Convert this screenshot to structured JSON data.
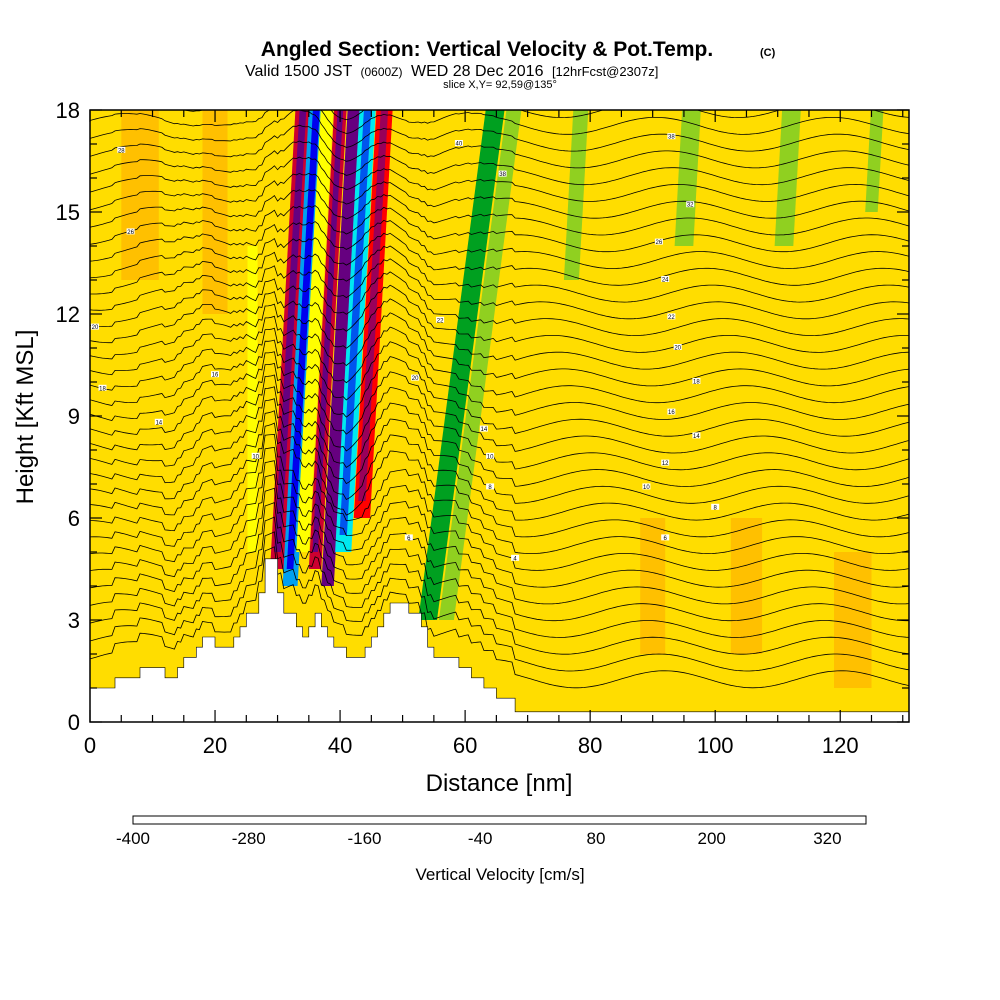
{
  "chart_data": {
    "type": "heatmap",
    "title": "Angled Section: Vertical Velocity & Pot.Temp.",
    "title_mark": "(C)",
    "subtitle_line1": {
      "prefix": "Valid 1500 JST",
      "utc": "(0600Z)",
      "date": "WED 28 Dec 2016",
      "forecast": "[12hrFcst@2307z]"
    },
    "subtitle_line2": "slice X,Y= 92,59@135°",
    "xlabel": "Distance [nm]",
    "ylabel": "Height [Kft MSL]",
    "xlim": [
      0,
      131
    ],
    "ylim": [
      0,
      18
    ],
    "x_ticks": [
      "0",
      "20",
      "40",
      "60",
      "80",
      "100",
      "120"
    ],
    "x_tick_values": [
      0,
      20,
      40,
      60,
      80,
      100,
      120
    ],
    "y_ticks": [
      "0",
      "3",
      "6",
      "9",
      "12",
      "15",
      "18"
    ],
    "y_tick_values": [
      0,
      3,
      6,
      9,
      12,
      15,
      18
    ],
    "colorbar": {
      "label": "Vertical Velocity [cm/s]",
      "min": -400,
      "max": 360,
      "step": 40,
      "tick_labels": [
        "-400",
        "-280",
        "-160",
        "-40",
        "80",
        "200",
        "320"
      ],
      "tick_values": [
        -400,
        -280,
        -160,
        -40,
        80,
        200,
        320
      ],
      "colors": [
        "#0000ee",
        "#0055ee",
        "#00a0f0",
        "#00e8f0",
        "#00d890",
        "#00c050",
        "#00a020",
        "#40b020",
        "#90d020",
        "#ffff00",
        "#ffdd00",
        "#ffc000",
        "#ffa000",
        "#ff7000",
        "#ff3000",
        "#ff0000",
        "#cc0030",
        "#99005a",
        "#660080"
      ]
    },
    "terrain_kft": [
      [
        0,
        1.0
      ],
      [
        4,
        1.0
      ],
      [
        4,
        1.3
      ],
      [
        8,
        1.3
      ],
      [
        8,
        1.6
      ],
      [
        12,
        1.6
      ],
      [
        12,
        1.3
      ],
      [
        14,
        1.3
      ],
      [
        14,
        1.6
      ],
      [
        15,
        1.6
      ],
      [
        15,
        1.9
      ],
      [
        17,
        1.9
      ],
      [
        17,
        2.2
      ],
      [
        18,
        2.2
      ],
      [
        18,
        2.5
      ],
      [
        20,
        2.5
      ],
      [
        20,
        2.2
      ],
      [
        23,
        2.2
      ],
      [
        23,
        2.5
      ],
      [
        24,
        2.5
      ],
      [
        24,
        2.8
      ],
      [
        25,
        2.8
      ],
      [
        25,
        3.2
      ],
      [
        27,
        3.2
      ],
      [
        27,
        3.8
      ],
      [
        28,
        3.8
      ],
      [
        28,
        4.8
      ],
      [
        30,
        4.8
      ],
      [
        30,
        3.8
      ],
      [
        31,
        3.8
      ],
      [
        31,
        3.2
      ],
      [
        33,
        3.2
      ],
      [
        33,
        2.8
      ],
      [
        34,
        2.8
      ],
      [
        34,
        2.5
      ],
      [
        35,
        2.5
      ],
      [
        35,
        2.8
      ],
      [
        36,
        2.8
      ],
      [
        36,
        3.2
      ],
      [
        37,
        3.2
      ],
      [
        37,
        2.8
      ],
      [
        38,
        2.8
      ],
      [
        38,
        2.5
      ],
      [
        39,
        2.5
      ],
      [
        39,
        2.2
      ],
      [
        41,
        2.2
      ],
      [
        41,
        1.9
      ],
      [
        44,
        1.9
      ],
      [
        44,
        2.2
      ],
      [
        45,
        2.2
      ],
      [
        45,
        2.5
      ],
      [
        46,
        2.5
      ],
      [
        46,
        2.8
      ],
      [
        47,
        2.8
      ],
      [
        47,
        3.2
      ],
      [
        48,
        3.2
      ],
      [
        48,
        3.5
      ],
      [
        51,
        3.5
      ],
      [
        51,
        3.2
      ],
      [
        53,
        3.2
      ],
      [
        53,
        2.8
      ],
      [
        54,
        2.8
      ],
      [
        54,
        2.2
      ],
      [
        55,
        2.2
      ],
      [
        55,
        1.9
      ],
      [
        59,
        1.9
      ],
      [
        59,
        1.6
      ],
      [
        61,
        1.6
      ],
      [
        61,
        1.3
      ],
      [
        63,
        1.3
      ],
      [
        63,
        1.0
      ],
      [
        65,
        1.0
      ],
      [
        65,
        0.7
      ],
      [
        68,
        0.7
      ],
      [
        68,
        0.3
      ],
      [
        131,
        0.3
      ]
    ],
    "velocity_features": [
      {
        "x": 30,
        "z": [
          4.5,
          18
        ],
        "width": 1.2,
        "tilt": 0.05,
        "value": 240
      },
      {
        "x": 32,
        "z": [
          4.0,
          18
        ],
        "width": 1.2,
        "tilt": 0.05,
        "value": -300
      },
      {
        "x": 34,
        "z": [
          5.0,
          18
        ],
        "width": 1.0,
        "tilt": 0.05,
        "value": -40
      },
      {
        "x": 36,
        "z": [
          4.5,
          18
        ],
        "width": 1.0,
        "tilt": 0.05,
        "value": 240
      },
      {
        "x": 38,
        "z": [
          4.0,
          18
        ],
        "width": 1.0,
        "tilt": 0.05,
        "value": 340
      },
      {
        "x": 40.5,
        "z": [
          5.0,
          18
        ],
        "width": 1.3,
        "tilt": 0.05,
        "value": -260
      },
      {
        "x": 43.5,
        "z": [
          6.0,
          18
        ],
        "width": 1.3,
        "tilt": 0.05,
        "value": 220
      },
      {
        "x": 54,
        "z": [
          3.0,
          18
        ],
        "width": 1.5,
        "tilt": 0.12,
        "value": -140
      },
      {
        "x": 57,
        "z": [
          3.0,
          18
        ],
        "width": 1.2,
        "tilt": 0.12,
        "value": -60
      },
      {
        "x": 26,
        "z": [
          5.0,
          14
        ],
        "width": 0.8,
        "tilt": 0.0,
        "value": -40
      },
      {
        "x": 77,
        "z": [
          13,
          18
        ],
        "width": 1.2,
        "tilt": 0.05,
        "value": -60
      },
      {
        "x": 95,
        "z": [
          14,
          18
        ],
        "width": 1.5,
        "tilt": 0.05,
        "value": -60
      },
      {
        "x": 111,
        "z": [
          14,
          18
        ],
        "width": 1.5,
        "tilt": 0.05,
        "value": -60
      },
      {
        "x": 125,
        "z": [
          15,
          18
        ],
        "width": 1.0,
        "tilt": 0.05,
        "value": -60
      },
      {
        "x": 8,
        "z": [
          13,
          18
        ],
        "width": 3.0,
        "tilt": 0.0,
        "value": 40
      },
      {
        "x": 20,
        "z": [
          12,
          18
        ],
        "width": 2.0,
        "tilt": 0.0,
        "value": 40
      },
      {
        "x": 90,
        "z": [
          2,
          6
        ],
        "width": 2.0,
        "tilt": 0.0,
        "value": 40
      },
      {
        "x": 105,
        "z": [
          2,
          6
        ],
        "width": 2.5,
        "tilt": 0.0,
        "value": 40
      },
      {
        "x": 122,
        "z": [
          1,
          5
        ],
        "width": 3.0,
        "tilt": 0.0,
        "value": 40
      }
    ],
    "isentrope_labels": [
      {
        "x": 5,
        "z": 16.8,
        "text": "28"
      },
      {
        "x": 6.5,
        "z": 14.4,
        "text": "26"
      },
      {
        "x": 0.8,
        "z": 11.6,
        "text": "20"
      },
      {
        "x": 2,
        "z": 9.8,
        "text": "18"
      },
      {
        "x": 11,
        "z": 8.8,
        "text": "14"
      },
      {
        "x": 20,
        "z": 10.2,
        "text": "16"
      },
      {
        "x": 26.5,
        "z": 7.8,
        "text": "10"
      },
      {
        "x": 59,
        "z": 17.0,
        "text": "40"
      },
      {
        "x": 66,
        "z": 16.1,
        "text": "38"
      },
      {
        "x": 56,
        "z": 11.8,
        "text": "22"
      },
      {
        "x": 52,
        "z": 10.1,
        "text": "20"
      },
      {
        "x": 63,
        "z": 8.6,
        "text": "14"
      },
      {
        "x": 64,
        "z": 7.8,
        "text": "10"
      },
      {
        "x": 64,
        "z": 6.9,
        "text": "8"
      },
      {
        "x": 51,
        "z": 5.4,
        "text": "6"
      },
      {
        "x": 68,
        "z": 4.8,
        "text": "4"
      },
      {
        "x": 93,
        "z": 17.2,
        "text": "38"
      },
      {
        "x": 96,
        "z": 15.2,
        "text": "32"
      },
      {
        "x": 91,
        "z": 14.1,
        "text": "26"
      },
      {
        "x": 92,
        "z": 13.0,
        "text": "24"
      },
      {
        "x": 93,
        "z": 11.9,
        "text": "22"
      },
      {
        "x": 94,
        "z": 11.0,
        "text": "20"
      },
      {
        "x": 97,
        "z": 10.0,
        "text": "18"
      },
      {
        "x": 93,
        "z": 9.1,
        "text": "16"
      },
      {
        "x": 97,
        "z": 8.4,
        "text": "14"
      },
      {
        "x": 92,
        "z": 7.6,
        "text": "12"
      },
      {
        "x": 89,
        "z": 6.9,
        "text": "10"
      },
      {
        "x": 100,
        "z": 6.3,
        "text": "8"
      },
      {
        "x": 92,
        "z": 5.4,
        "text": "6"
      }
    ]
  }
}
